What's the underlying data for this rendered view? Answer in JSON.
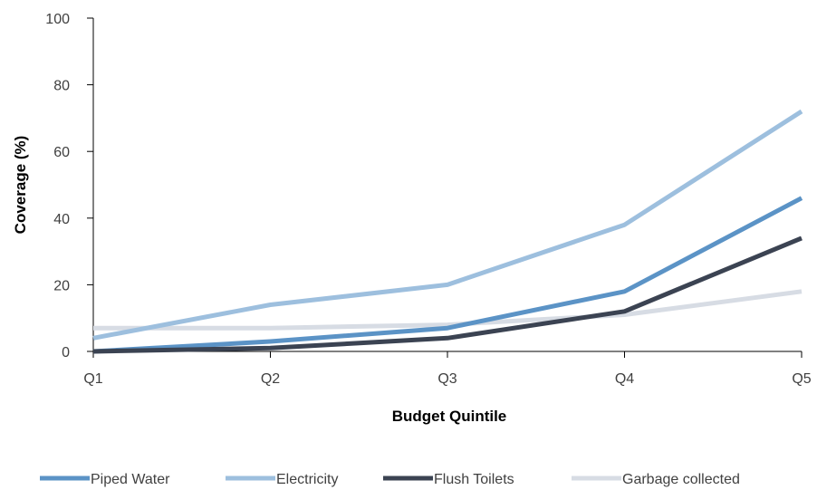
{
  "chart_data": {
    "type": "line",
    "title": "",
    "xlabel": "Budget Quintile",
    "ylabel": "Coverage (%)",
    "categories": [
      "Q1",
      "Q2",
      "Q3",
      "Q4",
      "Q5"
    ],
    "ylim": [
      0,
      100
    ],
    "yticks": [
      "0",
      "20",
      "40",
      "60",
      "80",
      "100"
    ],
    "grid": false,
    "legend_position": "bottom",
    "series": [
      {
        "name": "Piped Water",
        "color": "#5b93c6",
        "values": [
          0,
          3,
          7,
          18,
          46
        ]
      },
      {
        "name": "Electricity",
        "color": "#9dbfde",
        "values": [
          4,
          14,
          20,
          38,
          72
        ]
      },
      {
        "name": "Flush Toilets",
        "color": "#3b4352",
        "values": [
          0,
          1,
          4,
          12,
          34
        ]
      },
      {
        "name": "Garbage collected",
        "color": "#d7dce4",
        "values": [
          7,
          7,
          8,
          11,
          18
        ]
      }
    ]
  }
}
